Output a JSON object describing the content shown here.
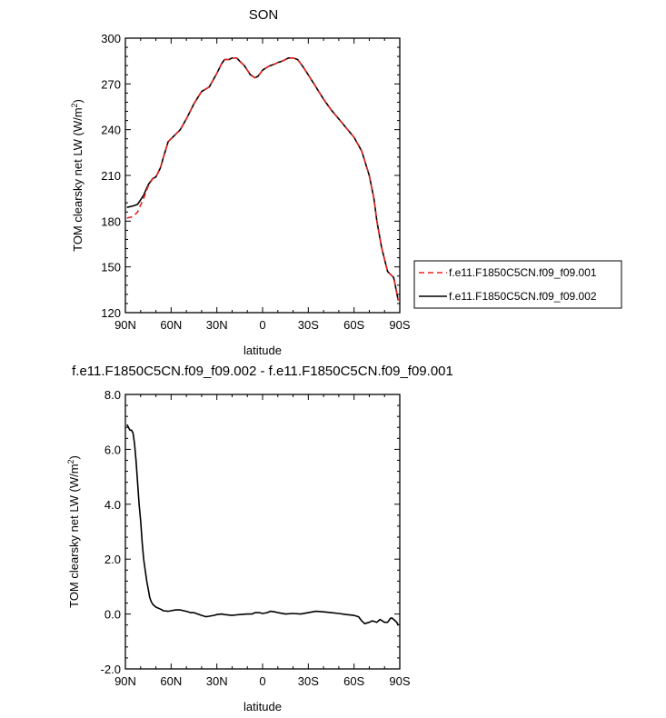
{
  "chart_data": [
    {
      "type": "line",
      "title": "SON",
      "xlabel": "latitude",
      "ylabel": "TOM clearsky net LW (W/m",
      "ylabel_sup": "2",
      "ylabel_tail": ")",
      "xlim": [
        90,
        -90
      ],
      "ylim": [
        120,
        300
      ],
      "xtick_values": [
        90,
        60,
        30,
        0,
        -30,
        -60,
        -90
      ],
      "xtick_labels": [
        "90N",
        "60N",
        "30N",
        "0",
        "30S",
        "60S",
        "90S"
      ],
      "ytick_values": [
        120,
        150,
        180,
        210,
        240,
        270,
        300
      ],
      "ytick_labels": [
        "120",
        "150",
        "180",
        "210",
        "240",
        "270",
        "300"
      ],
      "legend_placement": "right",
      "series": [
        {
          "name": "f.e11.F1850C5CN.f09_f09.001",
          "color": "#e8231f",
          "style": "dashed",
          "x": [
            89,
            85,
            82,
            78,
            75,
            72,
            70,
            67,
            65,
            62,
            60,
            57,
            54,
            50,
            45,
            40,
            35,
            30,
            27,
            25,
            22,
            20,
            17,
            15,
            12,
            10,
            8,
            5,
            3,
            0,
            -3,
            -5,
            -8,
            -10,
            -13,
            -15,
            -17,
            -20,
            -23,
            -26,
            -30,
            -35,
            -40,
            -45,
            -50,
            -55,
            -60,
            -65,
            -70,
            -73,
            -75,
            -78,
            -80,
            -82,
            -84,
            -85,
            -86,
            -87,
            -88,
            -89
          ],
          "y": [
            182,
            183,
            186,
            195,
            203,
            208,
            209,
            215,
            222,
            232,
            234,
            237,
            240,
            247,
            257,
            265,
            268,
            277,
            283,
            286,
            286,
            287,
            287,
            285,
            282,
            279,
            276,
            274,
            275,
            279,
            281,
            282,
            283,
            284,
            285,
            286,
            287,
            287,
            286,
            282,
            276,
            268,
            260,
            253,
            247,
            241,
            235,
            226,
            210,
            195,
            180,
            163,
            155,
            147,
            145,
            144,
            143,
            138,
            133,
            128
          ]
        },
        {
          "name": "f.e11.F1850C5CN.f09_f09.002",
          "color": "#000000",
          "style": "solid",
          "x": [
            89,
            85,
            82,
            78,
            75,
            72,
            70,
            67,
            65,
            62,
            60,
            57,
            54,
            50,
            45,
            40,
            35,
            30,
            27,
            25,
            22,
            20,
            17,
            15,
            12,
            10,
            8,
            5,
            3,
            0,
            -3,
            -5,
            -8,
            -10,
            -13,
            -15,
            -17,
            -20,
            -23,
            -26,
            -30,
            -35,
            -40,
            -45,
            -50,
            -55,
            -60,
            -65,
            -70,
            -73,
            -75,
            -78,
            -80,
            -82,
            -84,
            -85,
            -86,
            -87,
            -88,
            -89
          ],
          "y": [
            189,
            190,
            191,
            197,
            204,
            208,
            209,
            215,
            222,
            232,
            234,
            237,
            240,
            247,
            257,
            265,
            268,
            277,
            283,
            286,
            286,
            287,
            287,
            285,
            282,
            279,
            276,
            274,
            275,
            279,
            281,
            282,
            283,
            284,
            285,
            286,
            287,
            287,
            286,
            282,
            276,
            268,
            260,
            253,
            247,
            241,
            235,
            226,
            210,
            195,
            180,
            163,
            155,
            147,
            145,
            144,
            143,
            138,
            133,
            128
          ]
        }
      ]
    },
    {
      "type": "line",
      "title": "f.e11.F1850C5CN.f09_f09.002 - f.e11.F1850C5CN.f09_f09.001",
      "xlabel": "latitude",
      "ylabel": "TOM clearsky net LW (W/m",
      "ylabel_sup": "2",
      "ylabel_tail": ")",
      "xlim": [
        90,
        -90
      ],
      "ylim": [
        -2,
        8
      ],
      "xtick_values": [
        90,
        60,
        30,
        0,
        -30,
        -60,
        -90
      ],
      "xtick_labels": [
        "90N",
        "60N",
        "30N",
        "0",
        "30S",
        "60S",
        "90S"
      ],
      "ytick_values": [
        -2,
        0,
        2,
        4,
        6,
        8
      ],
      "ytick_labels": [
        "-2.0",
        "0.0",
        "2.0",
        "4.0",
        "6.0",
        "8.0"
      ],
      "series": [
        {
          "color": "#000000",
          "style": "solid",
          "x": [
            89,
            88,
            87,
            86,
            85,
            84,
            83,
            82,
            81,
            80,
            79,
            78,
            77,
            76,
            75,
            74,
            73,
            72,
            70,
            67,
            65,
            62,
            60,
            57,
            54,
            50,
            47,
            45,
            40,
            37,
            35,
            32,
            30,
            27,
            25,
            20,
            17,
            15,
            10,
            7,
            5,
            2,
            0,
            -3,
            -5,
            -8,
            -10,
            -15,
            -20,
            -25,
            -30,
            -35,
            -40,
            -45,
            -50,
            -55,
            -60,
            -63,
            -65,
            -67,
            -70,
            -72,
            -75,
            -77,
            -80,
            -82,
            -84,
            -85,
            -86,
            -87,
            -88,
            -89
          ],
          "y": [
            6.9,
            6.8,
            6.7,
            6.7,
            6.6,
            6.2,
            5.6,
            4.8,
            4.0,
            3.4,
            2.6,
            2.0,
            1.6,
            1.2,
            0.9,
            0.6,
            0.45,
            0.35,
            0.25,
            0.18,
            0.12,
            0.1,
            0.12,
            0.15,
            0.15,
            0.1,
            0.05,
            0.05,
            -0.05,
            -0.1,
            -0.08,
            -0.05,
            -0.02,
            0.0,
            -0.02,
            -0.05,
            -0.03,
            -0.02,
            0.0,
            0.0,
            0.05,
            0.05,
            0.02,
            0.05,
            0.1,
            0.08,
            0.05,
            0.0,
            0.02,
            0.0,
            0.05,
            0.1,
            0.08,
            0.05,
            0.02,
            -0.02,
            -0.05,
            -0.1,
            -0.25,
            -0.35,
            -0.3,
            -0.25,
            -0.3,
            -0.2,
            -0.3,
            -0.3,
            -0.15,
            -0.15,
            -0.2,
            -0.25,
            -0.3,
            -0.4
          ]
        }
      ]
    }
  ]
}
